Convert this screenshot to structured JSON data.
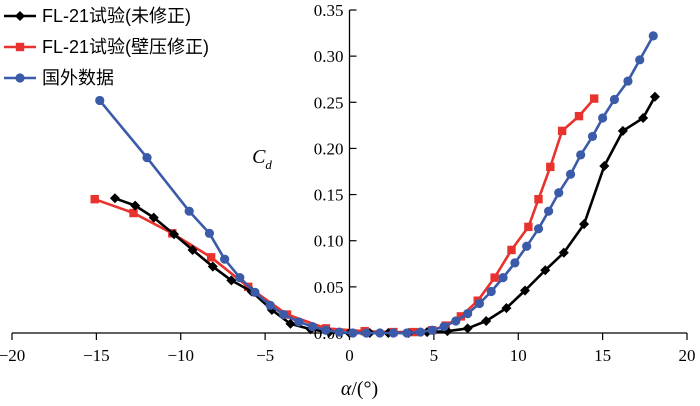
{
  "chart_data": {
    "type": "line",
    "xlabel_symbol": "α",
    "xlabel_unit": "/(°)",
    "ylabel_main": "C",
    "ylabel_sub": "d",
    "xlim": [
      -20,
      20
    ],
    "ylim": [
      0,
      0.35
    ],
    "x_ticks": [
      -20,
      -15,
      -10,
      -5,
      0,
      5,
      10,
      15,
      20
    ],
    "x_tick_labels": [
      "−20",
      "−15",
      "−10",
      "−5",
      "0",
      "5",
      "10",
      "15",
      "20"
    ],
    "y_ticks": [
      0,
      0.05,
      0.1,
      0.15,
      0.2,
      0.25,
      0.3,
      0.35
    ],
    "y_tick_labels": [
      "0.00",
      "0.05",
      "0.10",
      "0.15",
      "0.20",
      "0.25",
      "0.30",
      "0.35"
    ],
    "grid": false,
    "legend_position": "top-left",
    "series": [
      {
        "name": "FL-21试验(未修正)",
        "color": "#000000",
        "marker": "diamond",
        "x": [
          -13.9,
          -12.7,
          -11.6,
          -10.4,
          -9.3,
          -8.1,
          -7.0,
          -5.8,
          -4.6,
          -3.5,
          -2.3,
          -1.2,
          0.0,
          1.2,
          2.3,
          3.5,
          4.6,
          5.8,
          7.0,
          8.1,
          9.3,
          10.4,
          11.6,
          12.7,
          13.9,
          15.1,
          16.2,
          17.4,
          18.1
        ],
        "y": [
          0.146,
          0.138,
          0.125,
          0.107,
          0.09,
          0.072,
          0.057,
          0.045,
          0.025,
          0.01,
          0.004,
          0.001,
          0.0,
          0.0,
          0.0,
          0.0,
          0.001,
          0.002,
          0.005,
          0.013,
          0.027,
          0.046,
          0.068,
          0.087,
          0.118,
          0.181,
          0.219,
          0.233,
          0.256
        ]
      },
      {
        "name": "FL-21试验(壁压修正)",
        "color": "#e8322d",
        "marker": "square",
        "x": [
          -15.1,
          -12.8,
          -10.5,
          -8.2,
          -6.0,
          -3.7,
          -1.4,
          0.9,
          2.6,
          3.8,
          4.9,
          5.7,
          6.6,
          7.6,
          8.6,
          9.6,
          10.6,
          11.2,
          11.9,
          12.6,
          13.6,
          14.5
        ],
        "y": [
          0.145,
          0.13,
          0.108,
          0.082,
          0.05,
          0.02,
          0.005,
          0.002,
          0.001,
          0.001,
          0.003,
          0.008,
          0.018,
          0.035,
          0.06,
          0.09,
          0.115,
          0.145,
          0.18,
          0.219,
          0.235,
          0.254
        ]
      },
      {
        "name": "国外数据",
        "color": "#3b5ba9",
        "marker": "circle",
        "x": [
          -14.8,
          -12.0,
          -9.5,
          -8.3,
          -7.4,
          -6.5,
          -5.6,
          -4.7,
          -3.9,
          -3.0,
          -2.2,
          -1.4,
          -0.6,
          0.2,
          1.0,
          1.8,
          2.6,
          3.4,
          4.2,
          4.9,
          5.6,
          6.3,
          7.0,
          7.7,
          8.4,
          9.1,
          9.8,
          10.5,
          11.2,
          11.8,
          12.4,
          13.1,
          13.7,
          14.4,
          15.0,
          15.7,
          16.5,
          17.2,
          18.0
        ],
        "y": [
          0.252,
          0.19,
          0.132,
          0.108,
          0.08,
          0.06,
          0.044,
          0.03,
          0.02,
          0.012,
          0.007,
          0.003,
          0.001,
          0.0,
          0.0,
          0.0,
          0.0,
          0.0,
          0.001,
          0.003,
          0.007,
          0.013,
          0.021,
          0.032,
          0.045,
          0.06,
          0.076,
          0.094,
          0.113,
          0.132,
          0.152,
          0.172,
          0.193,
          0.213,
          0.233,
          0.253,
          0.273,
          0.296,
          0.322
        ]
      }
    ]
  }
}
